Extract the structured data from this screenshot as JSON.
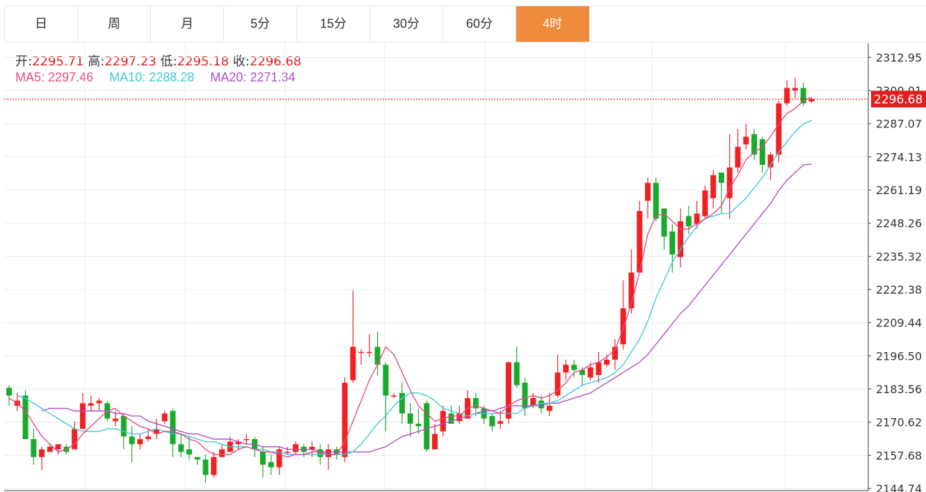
{
  "tabs": [
    "日",
    "周",
    "月",
    "5分",
    "15分",
    "30分",
    "60分",
    "4时"
  ],
  "active_tab": 7,
  "ohlc": {
    "open_label": "开:",
    "open": "2295.71",
    "high_label": "高:",
    "high": "2297.23",
    "low_label": "低:",
    "low": "2295.18",
    "close_label": "收:",
    "close": "2296.68"
  },
  "ma": {
    "ma5_label": "MA5:",
    "ma5": "2297.46",
    "ma10_label": "MA10:",
    "ma10": "2288.28",
    "ma20_label": "MA20:",
    "ma20": "2271.34"
  },
  "colors": {
    "up": "#f12121",
    "down": "#1ba92b",
    "ma5": "#e84a83",
    "ma10": "#3ec8d8",
    "ma20": "#b24cc8",
    "grid": "#e6ecf2",
    "current_price": "#e02020",
    "active_tab": "#f08a3c"
  },
  "chart_data": {
    "type": "candlestick",
    "current_price": 2296.68,
    "y_ticks": [
      "2312.95",
      "2300.01",
      "2287.07",
      "2274.13",
      "2261.19",
      "2248.26",
      "2235.32",
      "2222.38",
      "2209.44",
      "2196.50",
      "2183.56",
      "2170.62",
      "2157.68",
      "2144.74"
    ],
    "ylim": [
      2143.9,
      2318.5
    ],
    "candles": [
      [
        2184,
        2181,
        2185,
        2177
      ],
      [
        2177,
        2179,
        2182,
        2175
      ],
      [
        2181,
        2164,
        2183,
        2164
      ],
      [
        2164,
        2157,
        2168,
        2154
      ],
      [
        2157,
        2160,
        2161,
        2152
      ],
      [
        2159,
        2161,
        2162,
        2159
      ],
      [
        2160,
        2162,
        2162,
        2158
      ],
      [
        2161,
        2159,
        2162,
        2158
      ],
      [
        2160,
        2168,
        2171,
        2160
      ],
      [
        2168,
        2178,
        2182,
        2168
      ],
      [
        2177,
        2178,
        2181,
        2175
      ],
      [
        2178,
        2179,
        2180,
        2175
      ],
      [
        2178,
        2172,
        2179,
        2171
      ],
      [
        2171,
        2172,
        2175,
        2169
      ],
      [
        2173,
        2165,
        2174,
        2160
      ],
      [
        2165,
        2162,
        2169,
        2155
      ],
      [
        2162,
        2164,
        2166,
        2160
      ],
      [
        2164,
        2165,
        2168,
        2163
      ],
      [
        2166,
        2168,
        2172,
        2164
      ],
      [
        2171,
        2174,
        2175,
        2170
      ],
      [
        2175,
        2162,
        2176,
        2157
      ],
      [
        2162,
        2159,
        2166,
        2157
      ],
      [
        2160,
        2158,
        2165,
        2156
      ],
      [
        2157,
        2156,
        2156,
        2154
      ],
      [
        2156,
        2150,
        2158,
        2147
      ],
      [
        2150,
        2157,
        2159,
        2149
      ],
      [
        2157,
        2160,
        2162,
        2157
      ],
      [
        2159,
        2163,
        2165,
        2160
      ],
      [
        2162,
        2163,
        2164,
        2160
      ],
      [
        2164,
        2164,
        2166,
        2162
      ],
      [
        2164,
        2160,
        2165,
        2157
      ],
      [
        2159,
        2154,
        2161,
        2149
      ],
      [
        2155,
        2153,
        2158,
        2150
      ],
      [
        2153,
        2160,
        2161,
        2150
      ],
      [
        2159,
        2159,
        2161,
        2158
      ],
      [
        2159,
        2162,
        2163,
        2158
      ],
      [
        2161,
        2159,
        2162,
        2157
      ],
      [
        2160,
        2161,
        2163,
        2157
      ],
      [
        2160,
        2157,
        2162,
        2154
      ],
      [
        2157,
        2160,
        2162,
        2152
      ],
      [
        2160,
        2158,
        2161,
        2156
      ],
      [
        2157,
        2186,
        2188,
        2155
      ],
      [
        2187,
        2200,
        2222,
        2186
      ],
      [
        2198,
        2198,
        2199,
        2193
      ],
      [
        2198,
        2198,
        2205,
        2196
      ],
      [
        2200,
        2193,
        2206,
        2189
      ],
      [
        2193,
        2181,
        2194,
        2167
      ],
      [
        2181,
        2181,
        2182,
        2180
      ],
      [
        2182,
        2174,
        2186,
        2170
      ],
      [
        2174,
        2170,
        2178,
        2165
      ],
      [
        2170,
        2169,
        2176,
        2166
      ],
      [
        2178,
        2160,
        2179,
        2159
      ],
      [
        2160,
        2166,
        2170,
        2160
      ],
      [
        2167,
        2175,
        2177,
        2165
      ],
      [
        2174,
        2170,
        2177,
        2170
      ],
      [
        2171,
        2174,
        2177,
        2170
      ],
      [
        2172,
        2180,
        2183,
        2172
      ],
      [
        2180,
        2176,
        2182,
        2173
      ],
      [
        2176,
        2172,
        2177,
        2170
      ],
      [
        2173,
        2169,
        2174,
        2167
      ],
      [
        2170,
        2171,
        2175,
        2168
      ],
      [
        2172,
        2194,
        2194,
        2170
      ],
      [
        2194,
        2185,
        2200,
        2184
      ],
      [
        2186,
        2176,
        2188,
        2173
      ],
      [
        2177,
        2180,
        2182,
        2176
      ],
      [
        2179,
        2176,
        2181,
        2174
      ],
      [
        2175,
        2177,
        2182,
        2173
      ],
      [
        2181,
        2190,
        2197,
        2180
      ],
      [
        2190,
        2193,
        2195,
        2187
      ],
      [
        2193,
        2191,
        2195,
        2188
      ],
      [
        2191,
        2189,
        2192,
        2185
      ],
      [
        2188,
        2192,
        2194,
        2187
      ],
      [
        2189,
        2194,
        2198,
        2186
      ],
      [
        2193,
        2195,
        2197,
        2192
      ],
      [
        2195,
        2200,
        2203,
        2191
      ],
      [
        2201,
        2215,
        2226,
        2199
      ],
      [
        2215,
        2229,
        2238,
        2213
      ],
      [
        2229,
        2253,
        2257,
        2236
      ],
      [
        2257,
        2264,
        2266,
        2250
      ],
      [
        2264,
        2250,
        2266,
        2249
      ],
      [
        2254,
        2243,
        2254,
        2238
      ],
      [
        2245,
        2236,
        2248,
        2229
      ],
      [
        2235,
        2249,
        2254,
        2231
      ],
      [
        2251,
        2247,
        2255,
        2244
      ],
      [
        2248,
        2252,
        2257,
        2246
      ],
      [
        2251,
        2261,
        2263,
        2250
      ],
      [
        2258,
        2267,
        2269,
        2254
      ],
      [
        2268,
        2264,
        2268,
        2252
      ],
      [
        2258,
        2270,
        2283,
        2250
      ],
      [
        2270,
        2278,
        2285,
        2268
      ],
      [
        2279,
        2282,
        2287,
        2277
      ],
      [
        2283,
        2275,
        2285,
        2273
      ],
      [
        2281,
        2271,
        2282,
        2268
      ],
      [
        2270,
        2275,
        2276,
        2265
      ],
      [
        2275,
        2295,
        2296,
        2272
      ],
      [
        2295,
        2301,
        2304,
        2294
      ],
      [
        2300,
        2301,
        2305,
        2297
      ],
      [
        2301,
        2295,
        2303,
        2294
      ],
      [
        2295.71,
        2296.68,
        2297.23,
        2295.18
      ]
    ],
    "ma5": [
      2180,
      2178,
      2175,
      2170,
      2165,
      2162,
      2159,
      2160,
      2162,
      2166,
      2169,
      2172,
      2175,
      2176,
      2173,
      2171,
      2169,
      2168,
      2166,
      2167,
      2167,
      2166,
      2164,
      2163,
      2160,
      2158,
      2158,
      2158,
      2160,
      2161,
      2160,
      2159,
      2159,
      2158,
      2157,
      2158,
      2158,
      2159,
      2159,
      2158,
      2158,
      2163,
      2171,
      2179,
      2187,
      2193,
      2200,
      2197,
      2190,
      2183,
      2177,
      2174,
      2171,
      2172,
      2173,
      2173,
      2176,
      2177,
      2176,
      2175,
      2174,
      2177,
      2179,
      2180,
      2181,
      2180,
      2181,
      2183,
      2186,
      2190,
      2191,
      2193,
      2194,
      2196,
      2199,
      2207,
      2217,
      2229,
      2244,
      2251,
      2252,
      2249,
      2246,
      2246,
      2248,
      2250,
      2252,
      2255,
      2262,
      2267,
      2273,
      2276,
      2278,
      2282,
      2287,
      2291,
      2293,
      2296,
      2297.46
    ],
    "ma10": [
      2181,
      2180,
      2178,
      2176,
      2174,
      2172,
      2170,
      2168,
      2167,
      2167,
      2167,
      2168,
      2168,
      2167,
      2166,
      2166,
      2167,
      2168,
      2167,
      2166,
      2166,
      2165,
      2164,
      2163,
      2163,
      2162,
      2161,
      2161,
      2161,
      2160,
      2160,
      2159,
      2159,
      2158,
      2158,
      2158,
      2158,
      2158,
      2158,
      2158,
      2158,
      2159,
      2162,
      2166,
      2170,
      2173,
      2177,
      2180,
      2182,
      2182,
      2181,
      2179,
      2176,
      2175,
      2174,
      2173,
      2174,
      2174,
      2174,
      2174,
      2174,
      2174,
      2176,
      2177,
      2178,
      2178,
      2179,
      2181,
      2183,
      2185,
      2186,
      2187,
      2188,
      2190,
      2193,
      2198,
      2203,
      2210,
      2219,
      2226,
      2233,
      2238,
      2243,
      2247,
      2250,
      2251,
      2252,
      2252,
      2255,
      2258,
      2262,
      2266,
      2271,
      2276,
      2280,
      2284,
      2287,
      2288.28
    ],
    "ma20": [
      2175,
      2176,
      2176,
      2176,
      2175,
      2175,
      2175,
      2175,
      2175,
      2174,
      2174,
      2173,
      2173,
      2171,
      2170,
      2169,
      2168,
      2167,
      2166,
      2166,
      2165,
      2164,
      2164,
      2164,
      2163,
      2162,
      2162,
      2161,
      2161,
      2161,
      2160,
      2160,
      2160,
      2160,
      2159,
      2159,
      2159,
      2159,
      2159,
      2159,
      2159,
      2160,
      2161,
      2163,
      2165,
      2166,
      2167,
      2168,
      2169,
      2170,
      2171,
      2172,
      2173,
      2174,
      2175,
      2175,
      2176,
      2177,
      2177,
      2177,
      2177,
      2177,
      2178,
      2178,
      2179,
      2180,
      2181,
      2182,
      2184,
      2186,
      2188,
      2190,
      2192,
      2194,
      2197,
      2201,
      2205,
      2209,
      2213,
      2216,
      2220,
      2224,
      2228,
      2232,
      2236,
      2240,
      2244,
      2248,
      2252,
      2256,
      2261,
      2265,
      2268,
      2271,
      2271.34
    ]
  }
}
